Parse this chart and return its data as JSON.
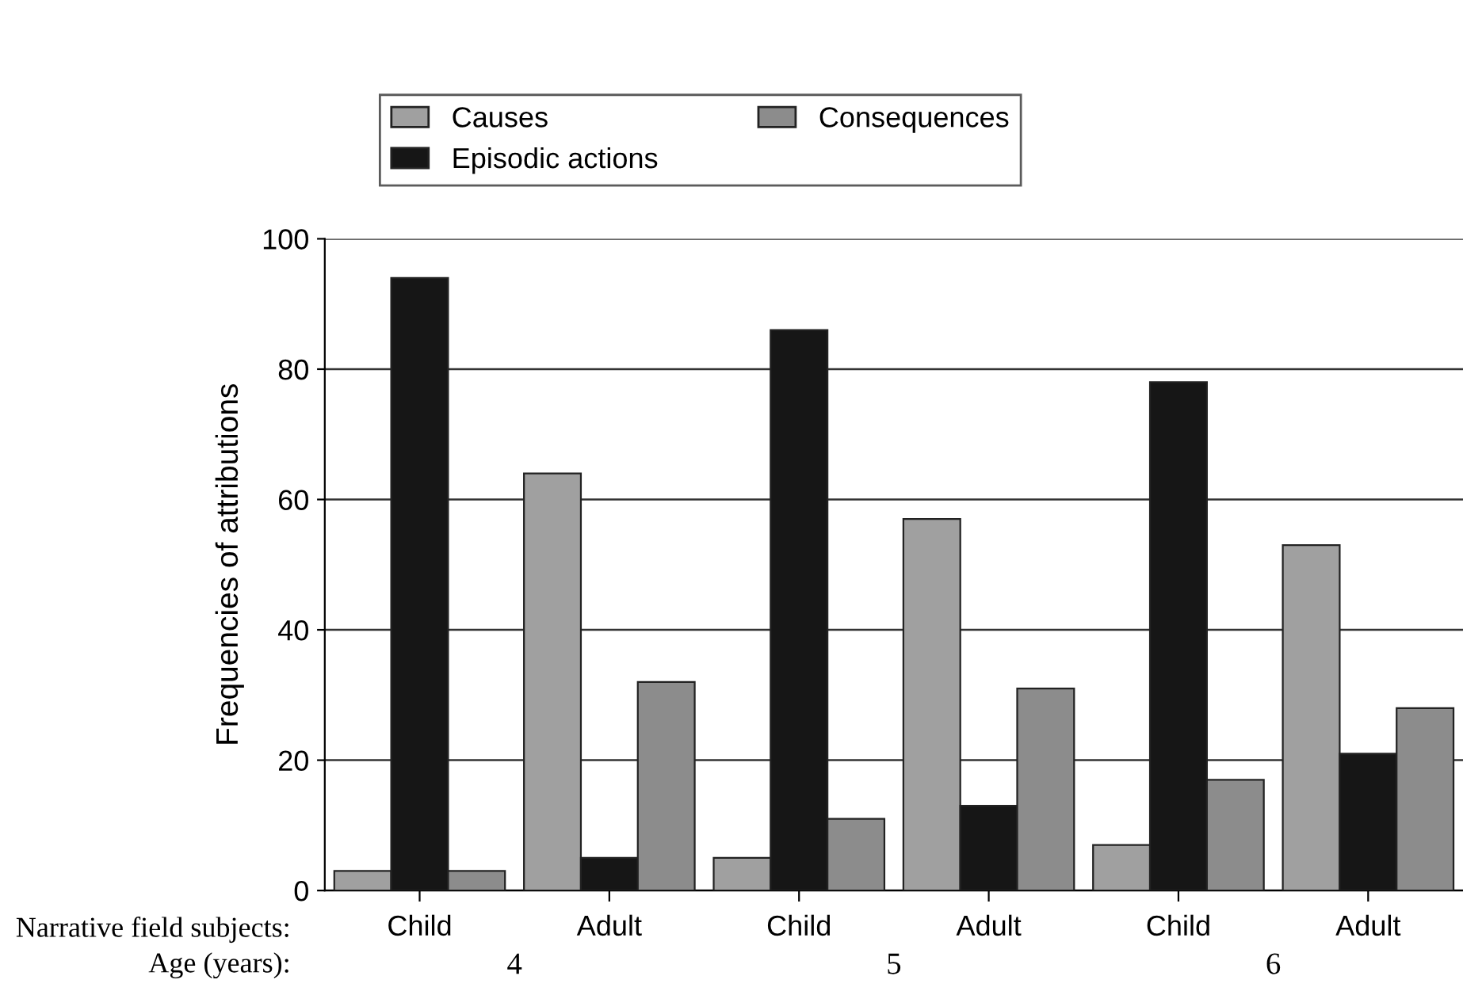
{
  "chart_data": {
    "type": "bar",
    "ylabel": "Frequencies of attributions",
    "categories": [
      "Child",
      "Adult",
      "Child",
      "Adult",
      "Child",
      "Adult"
    ],
    "series": [
      {
        "name": "Causes",
        "color": "#a0a0a0",
        "values": [
          3,
          64,
          5,
          57,
          7,
          53
        ]
      },
      {
        "name": "Episodic actions",
        "color": "#161616",
        "values": [
          94,
          5,
          86,
          13,
          78,
          21
        ]
      },
      {
        "name": "Consequences",
        "color": "#8c8c8c",
        "values": [
          3,
          32,
          11,
          31,
          17,
          28
        ]
      }
    ],
    "ylim": [
      0,
      100
    ],
    "yticks": [
      0,
      20,
      40,
      60,
      80,
      100
    ],
    "grid": "y",
    "legend": "top",
    "annotations": [
      "Narrative field subjects:",
      "Age (years):",
      "4",
      "5",
      "6"
    ]
  }
}
